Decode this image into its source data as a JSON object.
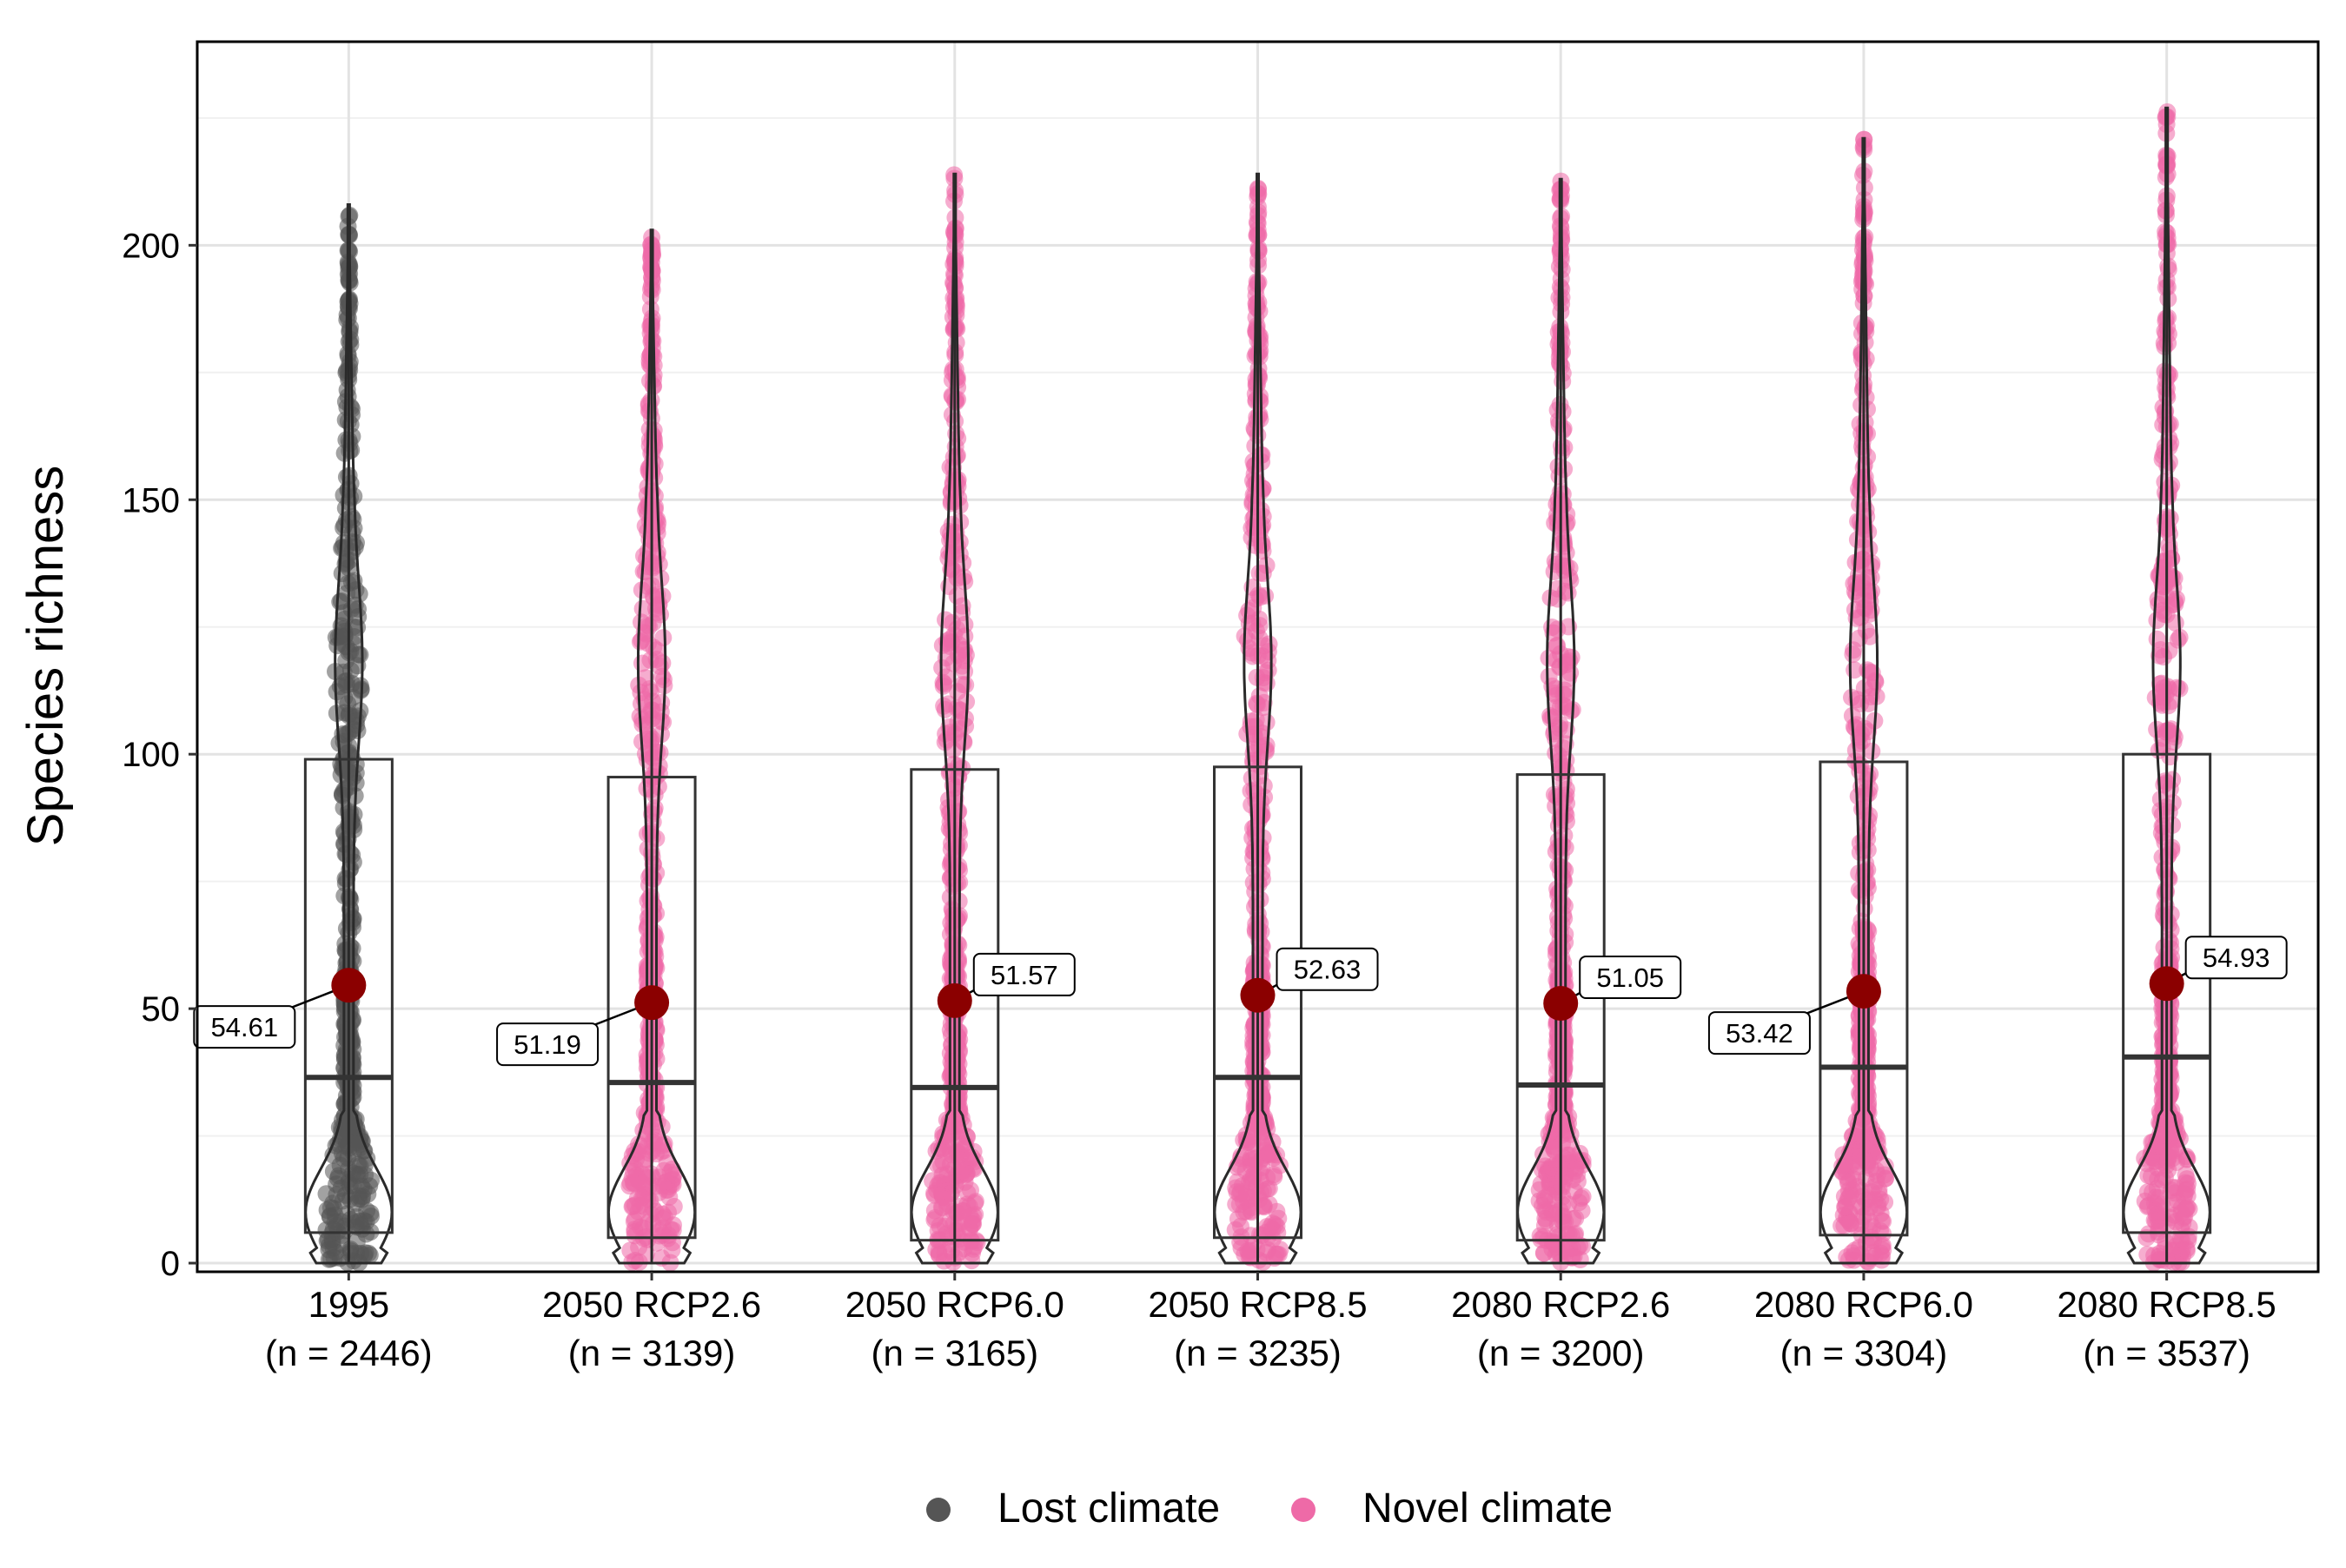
{
  "chart_data": {
    "type": "violin",
    "title": "",
    "xlabel": "",
    "ylabel": "Species richness",
    "ylim": [
      0,
      240
    ],
    "yticks": [
      0,
      50,
      100,
      150,
      200
    ],
    "grid": true,
    "legend_position": "bottom",
    "categories": [
      {
        "label": "1995",
        "n_label": "(n = 2446)",
        "group": "Lost climate",
        "mean": 54.61,
        "mean_label": "54.61",
        "median": 36.5,
        "q1": 6,
        "q3": 99,
        "min": 0,
        "max": 208
      },
      {
        "label": "2050 RCP2.6",
        "n_label": "(n = 3139)",
        "group": "Novel climate",
        "mean": 51.19,
        "mean_label": "51.19",
        "median": 35.5,
        "q1": 5,
        "q3": 95.5,
        "min": 0,
        "max": 203
      },
      {
        "label": "2050 RCP6.0",
        "n_label": "(n = 3165)",
        "group": "Novel climate",
        "mean": 51.57,
        "mean_label": "51.57",
        "median": 34.5,
        "q1": 4.5,
        "q3": 97,
        "min": 0,
        "max": 214
      },
      {
        "label": "2050 RCP8.5",
        "n_label": "(n = 3235)",
        "group": "Novel climate",
        "mean": 52.63,
        "mean_label": "52.63",
        "median": 36.5,
        "q1": 5,
        "q3": 97.5,
        "min": 0,
        "max": 214
      },
      {
        "label": "2080 RCP2.6",
        "n_label": "(n = 3200)",
        "group": "Novel climate",
        "mean": 51.05,
        "mean_label": "51.05",
        "median": 35,
        "q1": 4.5,
        "q3": 96,
        "min": 0,
        "max": 213
      },
      {
        "label": "2080 RCP6.0",
        "n_label": "(n = 3304)",
        "group": "Novel climate",
        "mean": 53.42,
        "mean_label": "53.42",
        "median": 38.5,
        "q1": 5.5,
        "q3": 98.5,
        "min": 0,
        "max": 221
      },
      {
        "label": "2080 RCP8.5",
        "n_label": "(n = 3537)",
        "group": "Novel climate",
        "mean": 54.93,
        "mean_label": "54.93",
        "median": 40.5,
        "q1": 6,
        "q3": 100,
        "min": 0,
        "max": 227
      }
    ],
    "series": [
      {
        "name": "Lost climate",
        "color": "#555555"
      },
      {
        "name": "Novel climate",
        "color": "#ee6aa7"
      }
    ],
    "mean_marker_color": "#8b0000"
  }
}
